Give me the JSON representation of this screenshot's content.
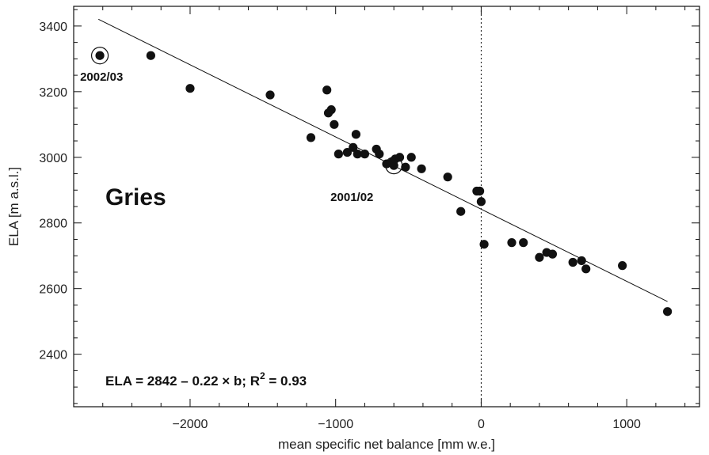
{
  "chart_data": {
    "type": "scatter",
    "xlabel": "mean specific net balance  [mm w.e.]",
    "ylabel": "ELA  [m a.s.l.]",
    "xlim": [
      -2800,
      1500
    ],
    "ylim": [
      2240,
      3460
    ],
    "x_ticks": [
      -2000,
      -1000,
      0,
      1000
    ],
    "x_tick_labels": [
      "−2000",
      "−1000",
      "0",
      "1000"
    ],
    "y_ticks": [
      2400,
      2600,
      2800,
      3000,
      3200,
      3400
    ],
    "y_tick_labels": [
      "2400",
      "2600",
      "2800",
      "3000",
      "3200",
      "3400"
    ],
    "grid": false,
    "glacier_name": "Gries",
    "equation_text": "ELA = 2842 – 0.22 × b;   R",
    "r2_superscript": "2",
    "r2_value": " = 0.93",
    "vertical_reference_x": 0,
    "regression": {
      "intercept": 2842,
      "slope": -0.22,
      "x_range": [
        -2630,
        1280
      ]
    },
    "highlighted": [
      {
        "label": "2002/03",
        "x": -2620,
        "y": 3310
      },
      {
        "label": "2001/02",
        "x": -600,
        "y": 2975
      }
    ],
    "points": [
      {
        "x": -2620,
        "y": 3310
      },
      {
        "x": -2270,
        "y": 3310
      },
      {
        "x": -2000,
        "y": 3210
      },
      {
        "x": -1450,
        "y": 3190
      },
      {
        "x": -1170,
        "y": 3060
      },
      {
        "x": -1060,
        "y": 3205
      },
      {
        "x": -1050,
        "y": 3135
      },
      {
        "x": -1030,
        "y": 3145
      },
      {
        "x": -1010,
        "y": 3100
      },
      {
        "x": -980,
        "y": 3010
      },
      {
        "x": -920,
        "y": 3015
      },
      {
        "x": -880,
        "y": 3030
      },
      {
        "x": -860,
        "y": 3070
      },
      {
        "x": -850,
        "y": 3010
      },
      {
        "x": -800,
        "y": 3010
      },
      {
        "x": -720,
        "y": 3025
      },
      {
        "x": -700,
        "y": 3010
      },
      {
        "x": -650,
        "y": 2980
      },
      {
        "x": -610,
        "y": 2985
      },
      {
        "x": -600,
        "y": 2975
      },
      {
        "x": -590,
        "y": 2995
      },
      {
        "x": -560,
        "y": 3000
      },
      {
        "x": -520,
        "y": 2970
      },
      {
        "x": -480,
        "y": 3000
      },
      {
        "x": -410,
        "y": 2965
      },
      {
        "x": -230,
        "y": 2940
      },
      {
        "x": -140,
        "y": 2835
      },
      {
        "x": -30,
        "y": 2897
      },
      {
        "x": -10,
        "y": 2897
      },
      {
        "x": 0,
        "y": 2865
      },
      {
        "x": 20,
        "y": 2735
      },
      {
        "x": 210,
        "y": 2740
      },
      {
        "x": 290,
        "y": 2740
      },
      {
        "x": 400,
        "y": 2695
      },
      {
        "x": 450,
        "y": 2710
      },
      {
        "x": 490,
        "y": 2705
      },
      {
        "x": 630,
        "y": 2680
      },
      {
        "x": 690,
        "y": 2685
      },
      {
        "x": 720,
        "y": 2660
      },
      {
        "x": 970,
        "y": 2670
      },
      {
        "x": 1280,
        "y": 2530
      }
    ]
  }
}
